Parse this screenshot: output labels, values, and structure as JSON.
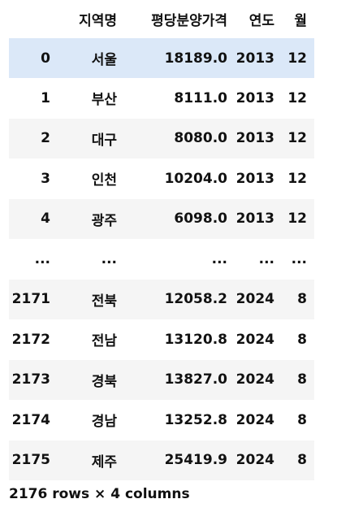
{
  "dataframe": {
    "columns": [
      "지역명",
      "평당분양가격",
      "연도",
      "월"
    ],
    "rows": [
      {
        "index": "0",
        "region": "서울",
        "price": "18189.0",
        "year": "2013",
        "month": "12"
      },
      {
        "index": "1",
        "region": "부산",
        "price": "8111.0",
        "year": "2013",
        "month": "12"
      },
      {
        "index": "2",
        "region": "대구",
        "price": "8080.0",
        "year": "2013",
        "month": "12"
      },
      {
        "index": "3",
        "region": "인천",
        "price": "10204.0",
        "year": "2013",
        "month": "12"
      },
      {
        "index": "4",
        "region": "광주",
        "price": "6098.0",
        "year": "2013",
        "month": "12"
      },
      {
        "index": "...",
        "region": "...",
        "price": "...",
        "year": "...",
        "month": "..."
      },
      {
        "index": "2171",
        "region": "전북",
        "price": "12058.2",
        "year": "2024",
        "month": "8"
      },
      {
        "index": "2172",
        "region": "전남",
        "price": "13120.8",
        "year": "2024",
        "month": "8"
      },
      {
        "index": "2173",
        "region": "경북",
        "price": "13827.0",
        "year": "2024",
        "month": "8"
      },
      {
        "index": "2174",
        "region": "경남",
        "price": "13252.8",
        "year": "2024",
        "month": "8"
      },
      {
        "index": "2175",
        "region": "제주",
        "price": "25419.9",
        "year": "2024",
        "month": "8"
      }
    ],
    "highlighted_row": 0,
    "shape_text": "2176 rows × 4 columns"
  },
  "colors": {
    "highlight_row": "#dbe8f8",
    "striped_row": "#f5f5f5",
    "text": "#111111"
  }
}
